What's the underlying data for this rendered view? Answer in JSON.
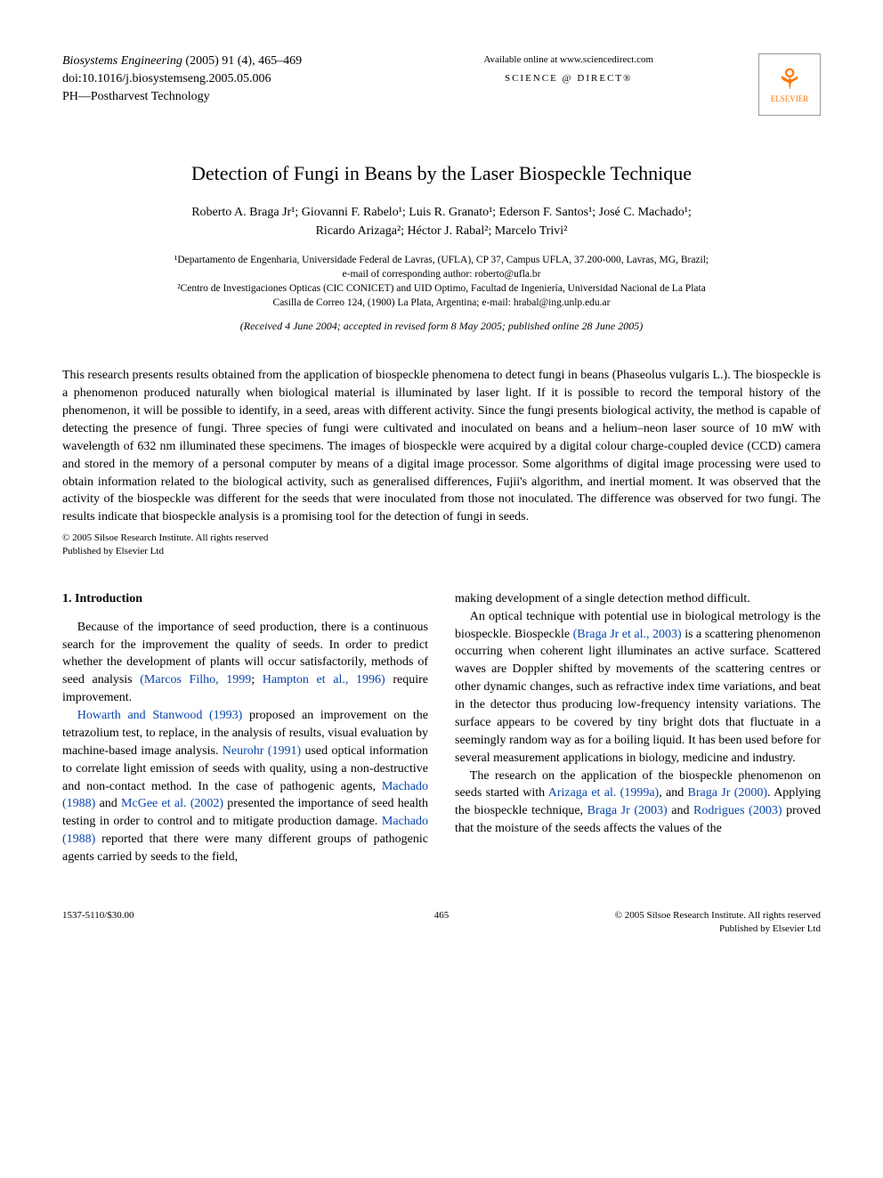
{
  "header": {
    "journal_name": "Biosystems Engineering",
    "year": "(2005)",
    "volume_issue": "91 (4),",
    "pages": "465–469",
    "doi": "doi:10.1016/j.biosystemseng.2005.05.006",
    "section": "PH—Postharvest Technology",
    "available_text": "Available online at www.sciencedirect.com",
    "sd_brand": "SCIENCE @ DIRECT®",
    "publisher_name": "ELSEVIER"
  },
  "title": "Detection of Fungi in Beans by the Laser Biospeckle Technique",
  "authors_line1": "Roberto A. Braga Jr¹; Giovanni F. Rabelo¹; Luis R. Granato¹; Ederson F. Santos¹; José C. Machado¹;",
  "authors_line2": "Ricardo Arizaga²; Héctor J. Rabal²; Marcelo Trivi²",
  "affiliations": {
    "aff1": "¹Departamento de Engenharia, Universidade Federal de Lavras, (UFLA), CP 37, Campus UFLA, 37.200-000, Lavras, MG, Brazil;",
    "aff1_email": "e-mail of corresponding author: roberto@ufla.br",
    "aff2": "²Centro de Investigaciones Opticas (CIC CONICET) and UID Optimo, Facultad de Ingeniería, Universidad Nacional de La Plata",
    "aff2_addr": "Casilla de Correo 124, (1900) La Plata, Argentina; e-mail: hrabal@ing.unlp.edu.ar"
  },
  "received": "(Received 4 June 2004; accepted in revised form 8 May 2005; published online 28 June 2005)",
  "abstract": "This research presents results obtained from the application of biospeckle phenomena to detect fungi in beans (Phaseolus vulgaris L.). The biospeckle is a phenomenon produced naturally when biological material is illuminated by laser light. If it is possible to record the temporal history of the phenomenon, it will be possible to identify, in a seed, areas with different activity. Since the fungi presents biological activity, the method is capable of detecting the presence of fungi. Three species of fungi were cultivated and inoculated on beans and a helium–neon laser source of 10 mW with wavelength of 632 nm illuminated these specimens. The images of biospeckle were acquired by a digital colour charge-coupled device (CCD) camera and stored in the memory of a personal computer by means of a digital image processor. Some algorithms of digital image processing were used to obtain information related to the biological activity, such as generalised differences, Fujii's algorithm, and inertial moment. It was observed that the activity of the biospeckle was different for the seeds that were inoculated from those not inoculated. The difference was observed for two fungi. The results indicate that biospeckle analysis is a promising tool for the detection of fungi in seeds.",
  "copyright_line1": "© 2005 Silsoe Research Institute. All rights reserved",
  "copyright_line2": "Published by Elsevier Ltd",
  "intro_heading": "1. Introduction",
  "col_left": {
    "p1_a": "Because of the importance of seed production, there is a continuous search for the improvement the quality of seeds. In order to predict whether the development of plants will occur satisfactorily, methods of seed analysis ",
    "p1_cite1": "(Marcos Filho, 1999",
    "p1_semi": "; ",
    "p1_cite2": "Hampton et al., 1996)",
    "p1_b": " require improvement.",
    "p2_cite1": "Howarth and Stanwood (1993)",
    "p2_a": " proposed an improvement on the tetrazolium test, to replace, in the analysis of results, visual evaluation by machine-based image analysis. ",
    "p2_cite2": "Neurohr (1991)",
    "p2_b": " used optical information to correlate light emission of seeds with quality, using a non-destructive and non-contact method. In the case of pathogenic agents, ",
    "p2_cite3": "Machado (1988)",
    "p2_c": " and ",
    "p2_cite4": "McGee et al. (2002)",
    "p2_d": " presented the importance of seed health testing in order to control and to mitigate production damage. ",
    "p2_cite5": "Machado (1988)",
    "p2_e": " reported that there were many different groups of pathogenic agents carried by seeds to the field,"
  },
  "col_right": {
    "p1": "making development of a single detection method difficult.",
    "p2_a": "An optical technique with potential use in biological metrology is the biospeckle. Biospeckle ",
    "p2_cite1": "(Braga Jr et al., 2003)",
    "p2_b": " is a scattering phenomenon occurring when coherent light illuminates an active surface. Scattered waves are Doppler shifted by movements of the scattering centres or other dynamic changes, such as refractive index time variations, and beat in the detector thus producing low-frequency intensity variations. The surface appears to be covered by tiny bright dots that fluctuate in a seemingly random way as for a boiling liquid. It has been used before for several measurement applications in biology, medicine and industry.",
    "p3_a": "The research on the application of the biospeckle phenomenon on seeds started with ",
    "p3_cite1": "Arizaga et al. (1999a)",
    "p3_b": ", and ",
    "p3_cite2": "Braga Jr (2000)",
    "p3_c": ". Applying the biospeckle technique, ",
    "p3_cite3": "Braga Jr (2003)",
    "p3_d": " and ",
    "p3_cite4": "Rodrigues (2003)",
    "p3_e": " proved that the moisture of the seeds affects the values of the"
  },
  "footer": {
    "issn": "1537-5110/$30.00",
    "page_num": "465",
    "cr1": "© 2005 Silsoe Research Institute. All rights reserved",
    "cr2": "Published by Elsevier Ltd"
  },
  "colors": {
    "text": "#000000",
    "link": "#0645ad",
    "elsevier": "#ff7800",
    "background": "#ffffff"
  }
}
